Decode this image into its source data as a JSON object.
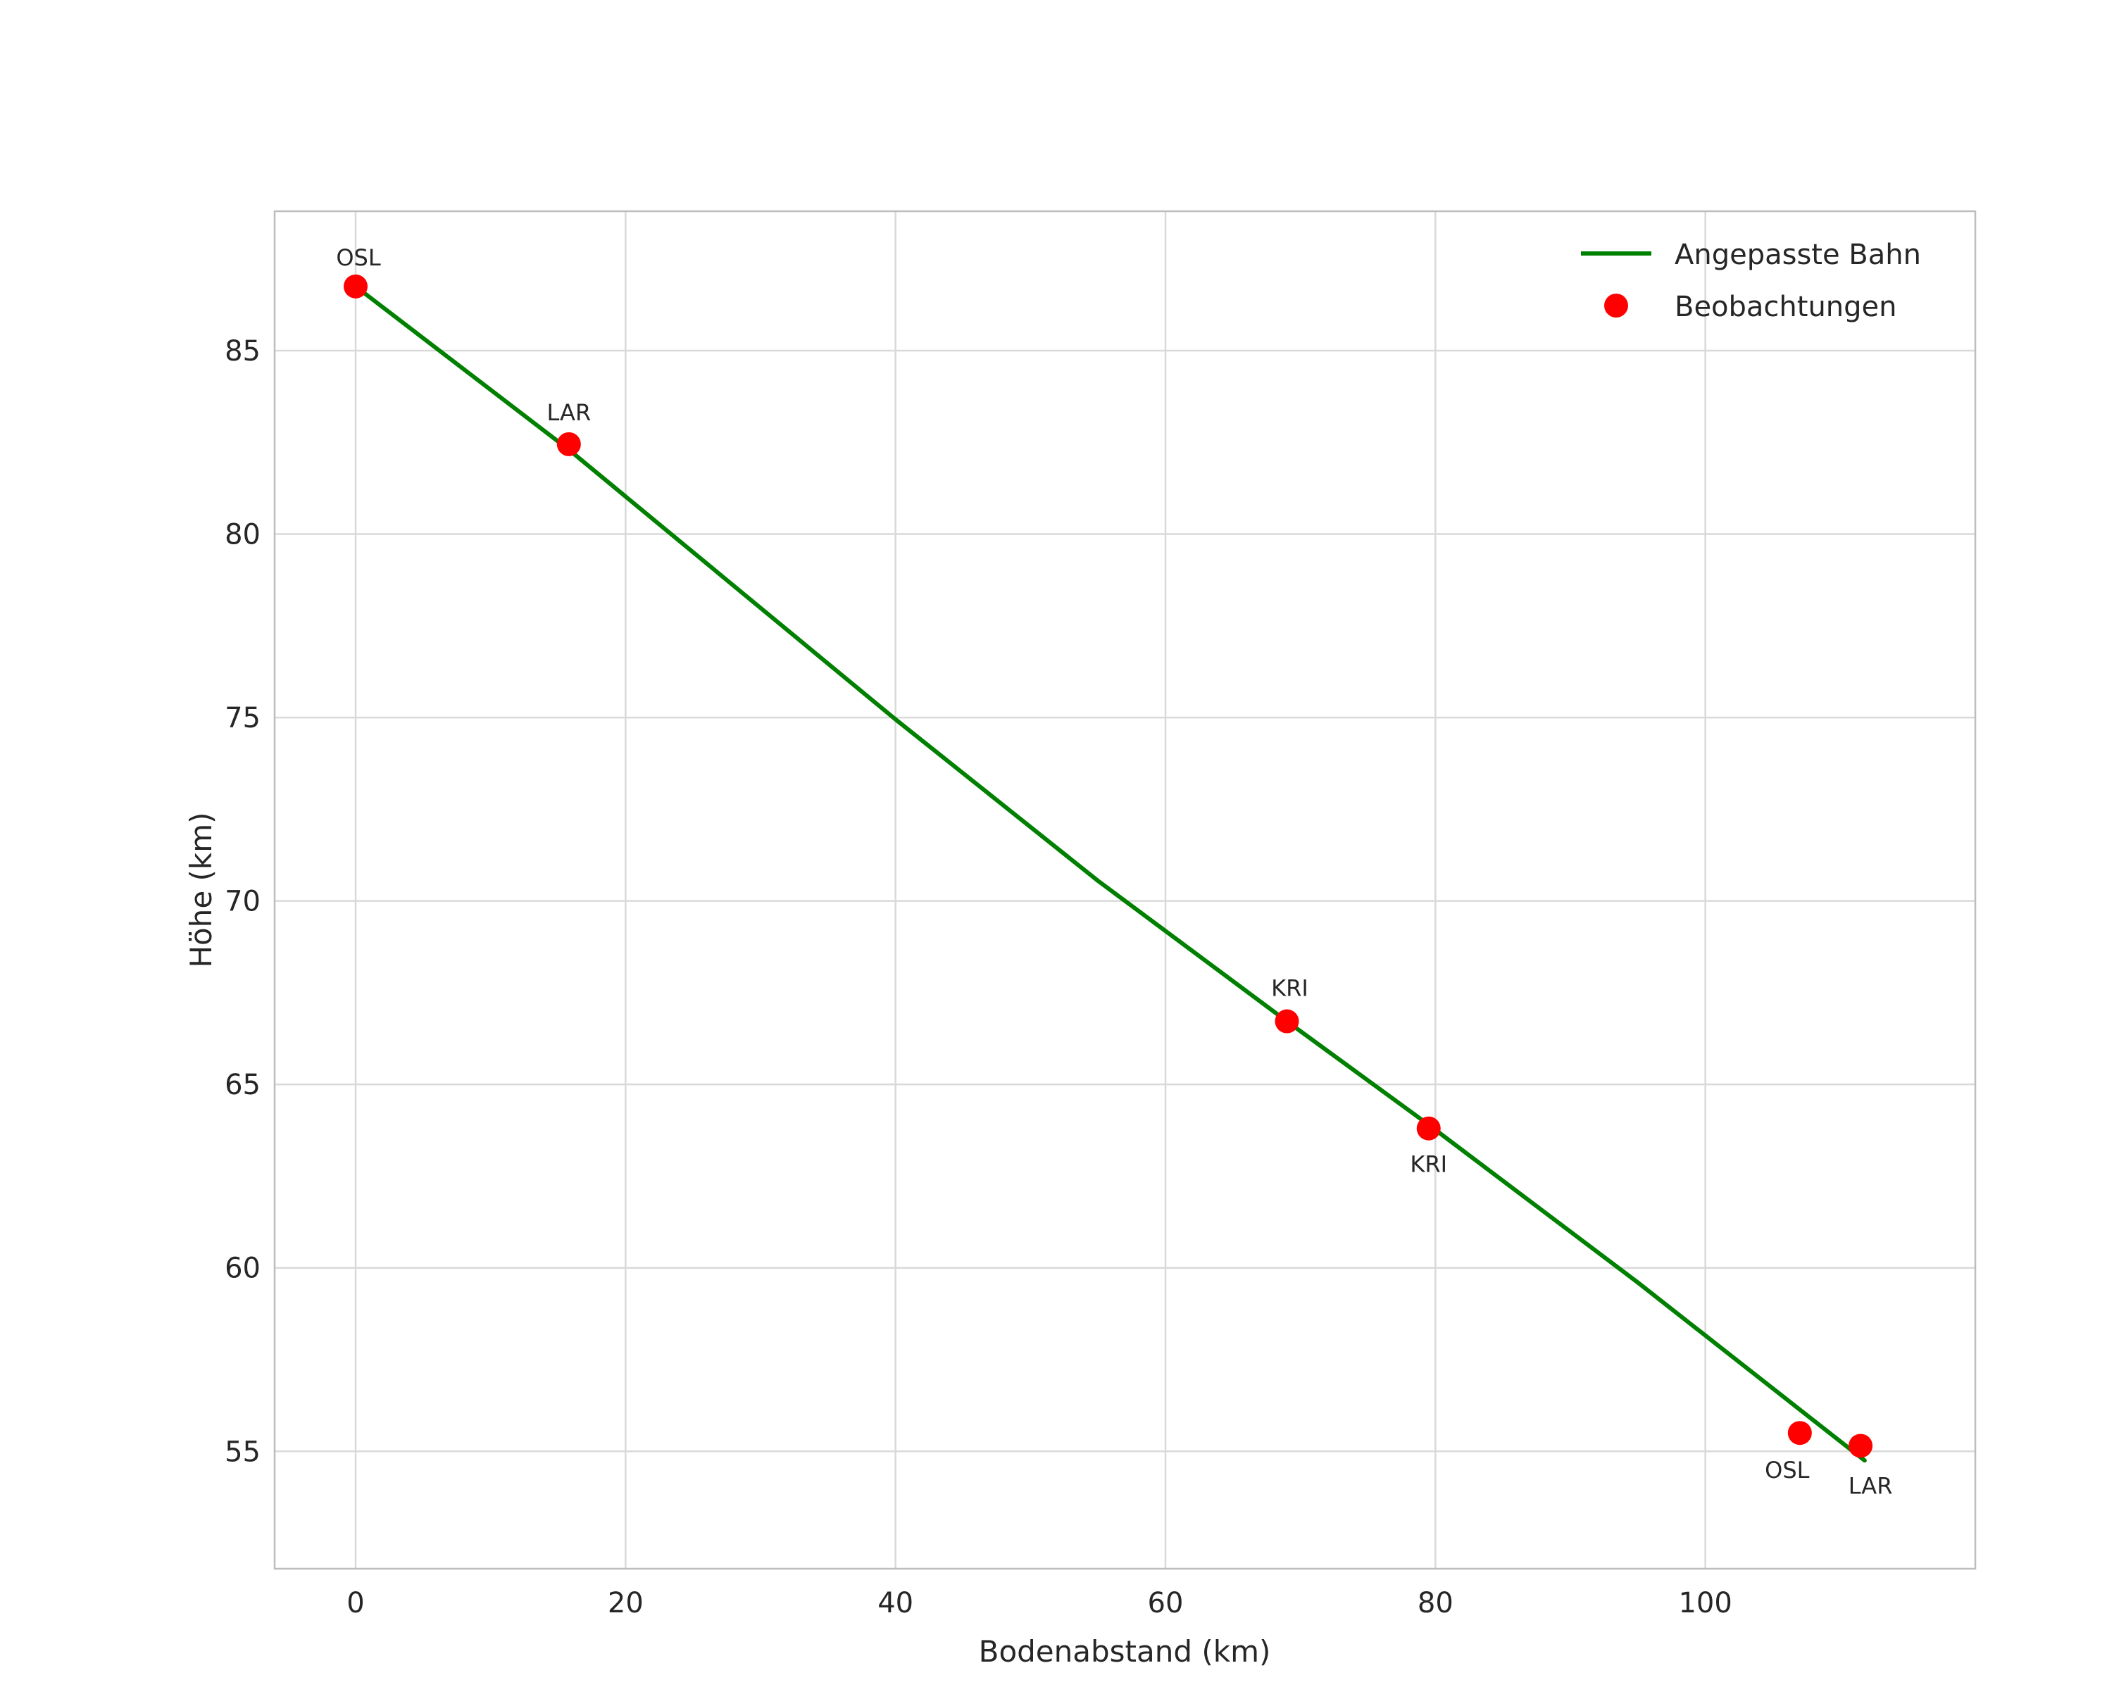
{
  "chart_data": {
    "type": "line",
    "title": "",
    "xlabel": "Bodenabstand (km)",
    "ylabel": "Höhe (km)",
    "xlim": [
      -6,
      120
    ],
    "ylim": [
      51.8,
      88.8
    ],
    "xticks": [
      0,
      20,
      40,
      60,
      80,
      100
    ],
    "yticks": [
      55,
      60,
      65,
      70,
      75,
      80,
      85
    ],
    "grid": true,
    "colors": {
      "line": "#008000",
      "point": "#ff0000",
      "grid": "#d9d9d9",
      "border": "#bdbdbd",
      "text": "#262626",
      "background": "#ffffff"
    },
    "legend": {
      "position": "top-right",
      "entries": [
        {
          "label": "Angepasste Bahn",
          "type": "line",
          "color": "#008000"
        },
        {
          "label": "Beobachtungen",
          "type": "point",
          "color": "#ff0000"
        }
      ]
    },
    "series": [
      {
        "name": "Angepasste Bahn",
        "type": "line",
        "color": "#008000",
        "points": [
          [
            0,
            86.75
          ],
          [
            15.8,
            82.3
          ],
          [
            40,
            74.95
          ],
          [
            55,
            70.55
          ],
          [
            69,
            66.72
          ],
          [
            79.5,
            63.9
          ],
          [
            95,
            59.6
          ],
          [
            111.8,
            54.75
          ]
        ]
      },
      {
        "name": "Beobachtungen",
        "type": "scatter",
        "color": "#ff0000",
        "points": [
          {
            "x": 0,
            "y": 86.75,
            "label": "OSL",
            "dx": 4,
            "dy": -30,
            "anchor": "middle"
          },
          {
            "x": 15.8,
            "y": 82.45,
            "label": "LAR",
            "dx": 0,
            "dy": -34,
            "anchor": "middle"
          },
          {
            "x": 69,
            "y": 66.72,
            "label": "KRI",
            "dx": 4,
            "dy": -36,
            "anchor": "middle"
          },
          {
            "x": 79.5,
            "y": 63.8,
            "label": "KRI",
            "dx": 0,
            "dy": 62,
            "anchor": "middle"
          },
          {
            "x": 107,
            "y": 55.5,
            "label": "OSL",
            "dx": -18,
            "dy": 64,
            "anchor": "middle"
          },
          {
            "x": 111.5,
            "y": 55.15,
            "label": "LAR",
            "dx": 14,
            "dy": 68,
            "anchor": "middle"
          }
        ]
      }
    ]
  }
}
